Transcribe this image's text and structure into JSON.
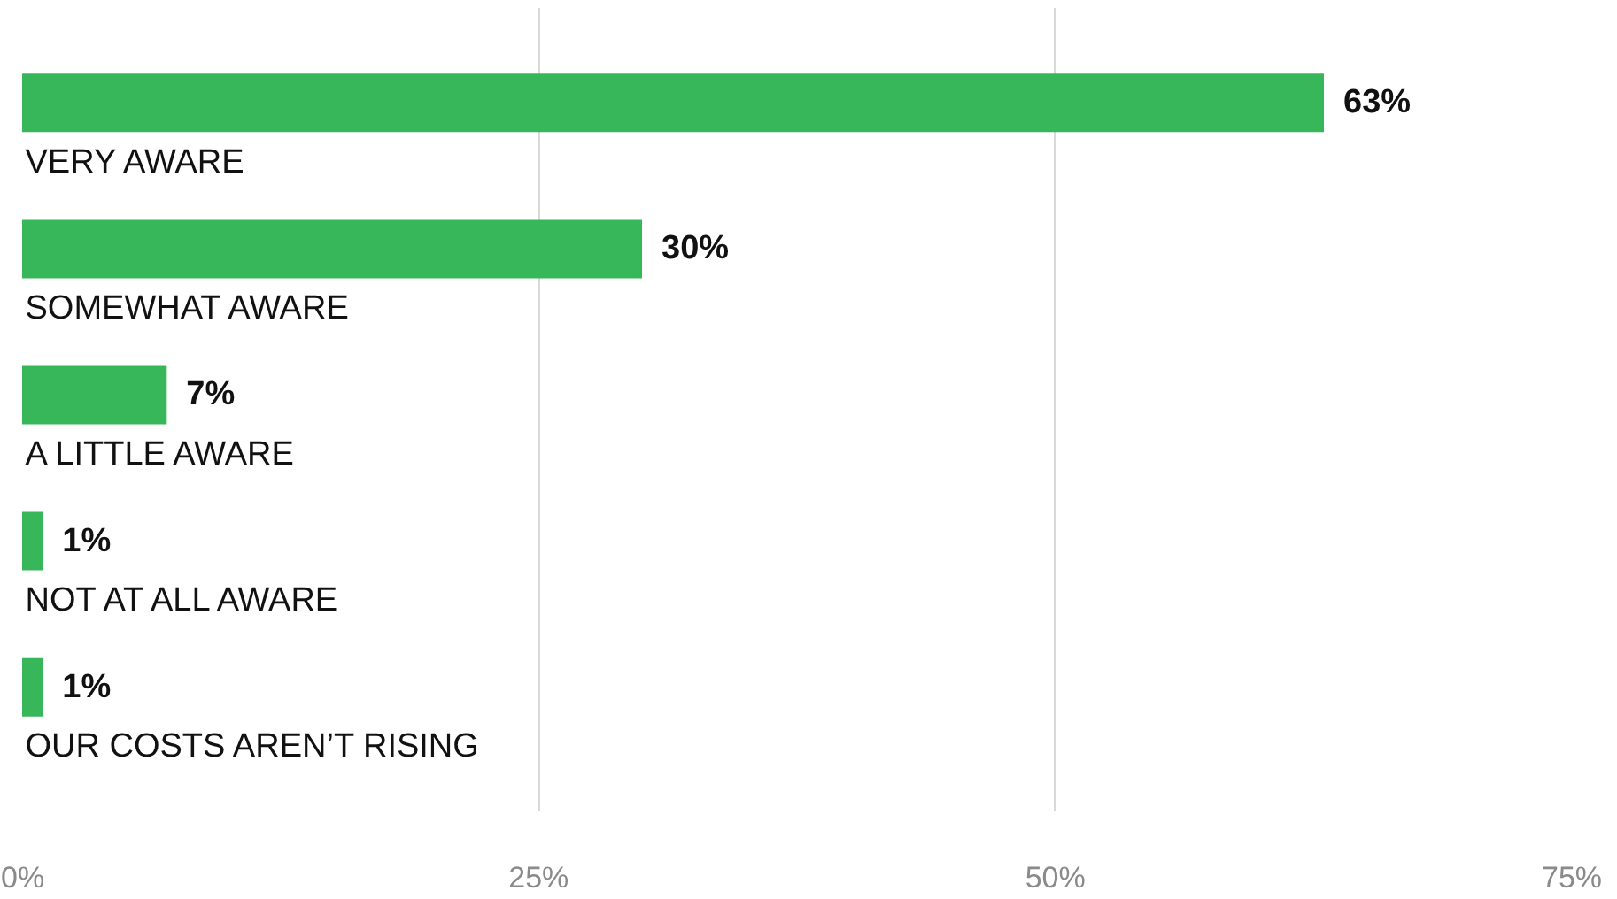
{
  "chart_data": {
    "type": "bar",
    "orientation": "horizontal",
    "categories": [
      "VERY AWARE",
      "SOMEWHAT AWARE",
      "A LITTLE AWARE",
      "NOT AT ALL AWARE",
      "OUR COSTS AREN’T RISING"
    ],
    "values": [
      63,
      30,
      7,
      1,
      1
    ],
    "value_labels": [
      "63%",
      "30%",
      "7%",
      "1%",
      "1%"
    ],
    "color": "#37b65a",
    "xlim": [
      0,
      75
    ],
    "xticks": [
      {
        "value": 0,
        "label": "0%"
      },
      {
        "value": 25,
        "label": "25%"
      },
      {
        "value": 50,
        "label": "50%"
      },
      {
        "value": 75,
        "label": "75%"
      }
    ],
    "grid": "x"
  }
}
